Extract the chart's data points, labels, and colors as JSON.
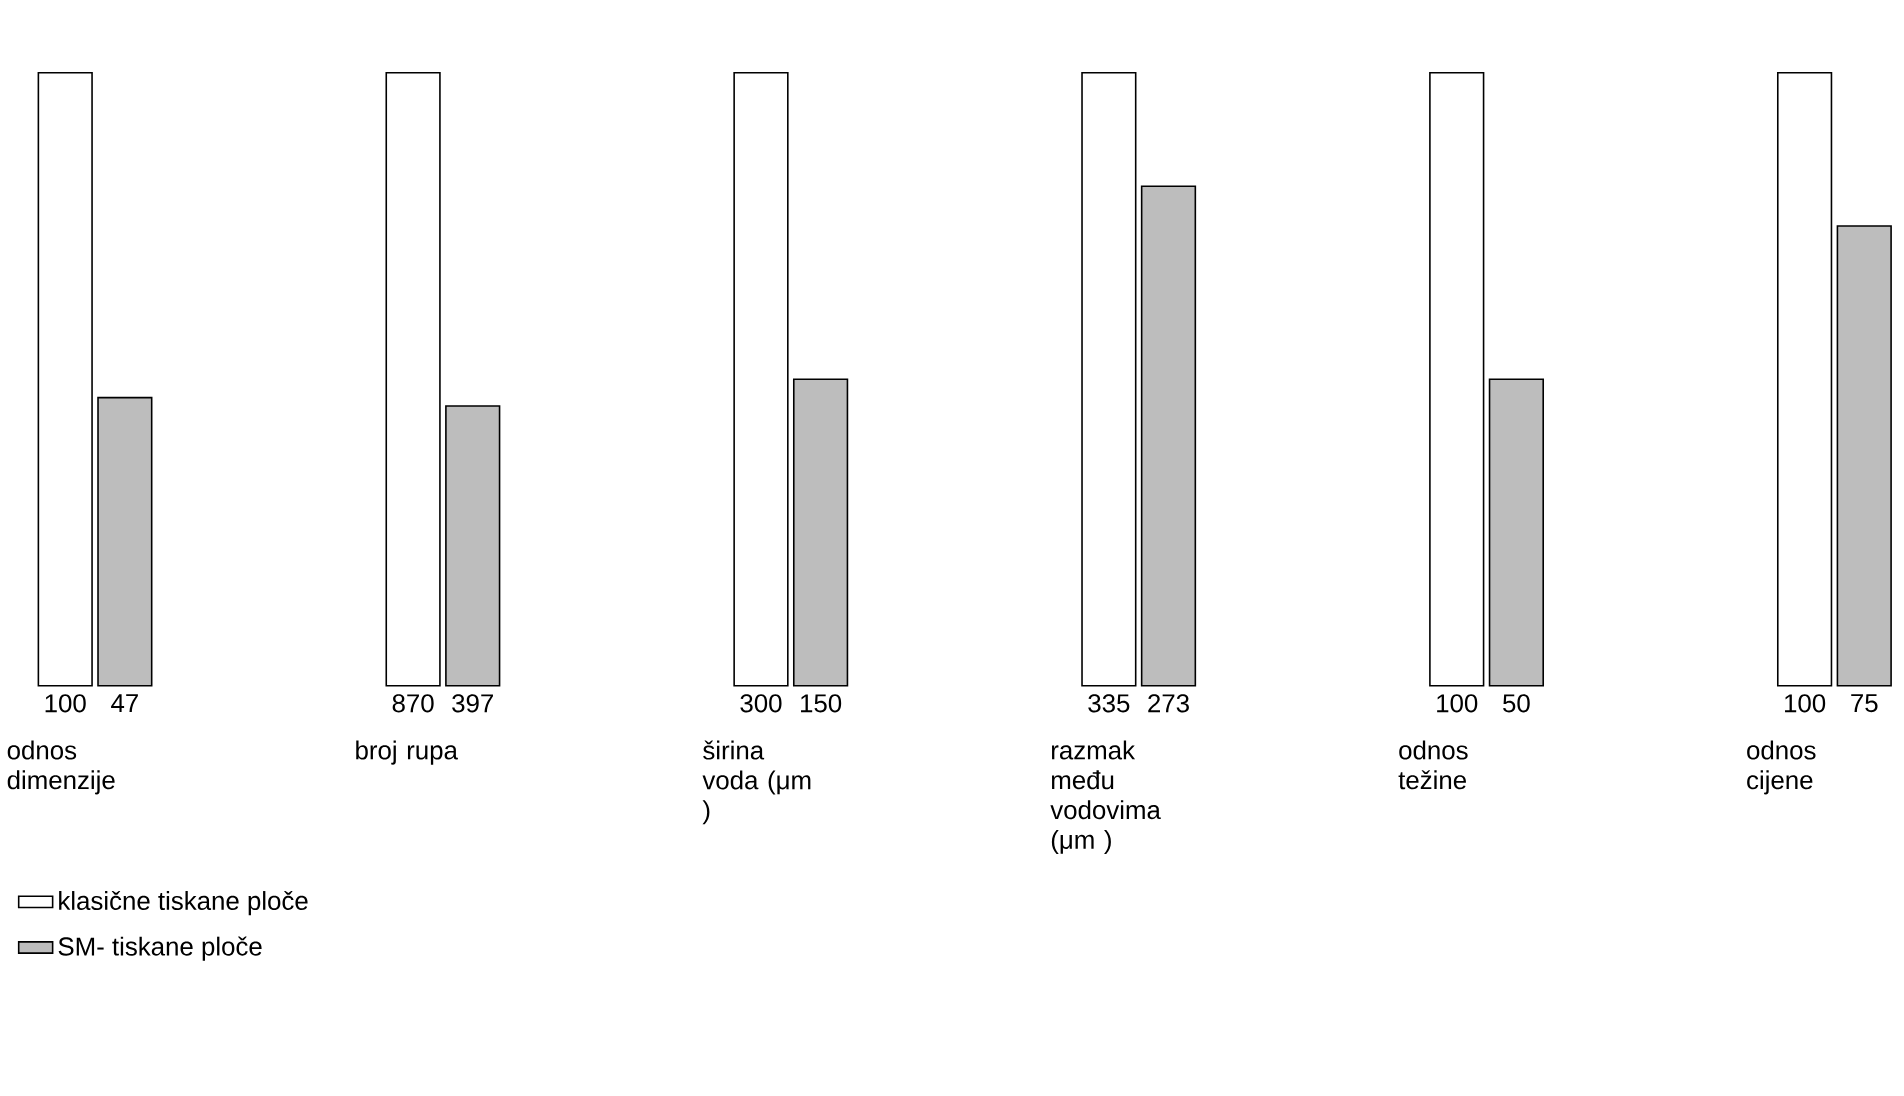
{
  "chart_data": [
    {
      "type": "bar",
      "xlabel": "odnos dimenzije",
      "categories": [
        null
      ],
      "tick_labels": false,
      "data_labels": true,
      "legend": "bottom",
      "series": [
        {
          "name": "klasične tiskane ploče",
          "color": "#ffffff",
          "values": [
            100
          ]
        },
        {
          "name": "SM- tiskane ploče",
          "color": "#bdbdbd",
          "values": [
            47
          ]
        }
      ]
    },
    {
      "type": "bar",
      "xlabel": "broj rupa",
      "categories": [
        null
      ],
      "tick_labels": false,
      "data_labels": true,
      "series": [
        {
          "color": "#ffffff",
          "values": [
            870
          ]
        },
        {
          "color": "#bdbdbd",
          "values": [
            397
          ]
        }
      ]
    },
    {
      "type": "bar",
      "xlabel": "širina voda (μm )",
      "categories": [
        null
      ],
      "tick_labels": false,
      "data_labels": true,
      "series": [
        {
          "color": "#ffffff",
          "values": [
            300
          ]
        },
        {
          "color": "#bdbdbd",
          "values": [
            150
          ]
        }
      ]
    },
    {
      "type": "bar",
      "xlabel": "razmak među vodovima (μm )",
      "categories": [
        null
      ],
      "tick_labels": false,
      "data_labels": true,
      "series": [
        {
          "color": "#ffffff",
          "values": [
            335
          ]
        },
        {
          "color": "#bdbdbd",
          "values": [
            273
          ]
        }
      ]
    },
    {
      "type": "bar",
      "xlabel": "odnos težine",
      "categories": [
        null
      ],
      "tick_labels": false,
      "data_labels": true,
      "series": [
        {
          "color": "#ffffff",
          "values": [
            100
          ]
        },
        {
          "color": "#bdbdbd",
          "values": [
            50
          ]
        }
      ]
    },
    {
      "type": "bar",
      "xlabel": "odnos cijene",
      "categories": [
        null
      ],
      "tick_labels": false,
      "data_labels": true,
      "series": [
        {
          "color": "#ffffff",
          "values": [
            100
          ]
        },
        {
          "color": "#bdbdbd",
          "values": [
            75
          ]
        }
      ]
    }
  ]
}
